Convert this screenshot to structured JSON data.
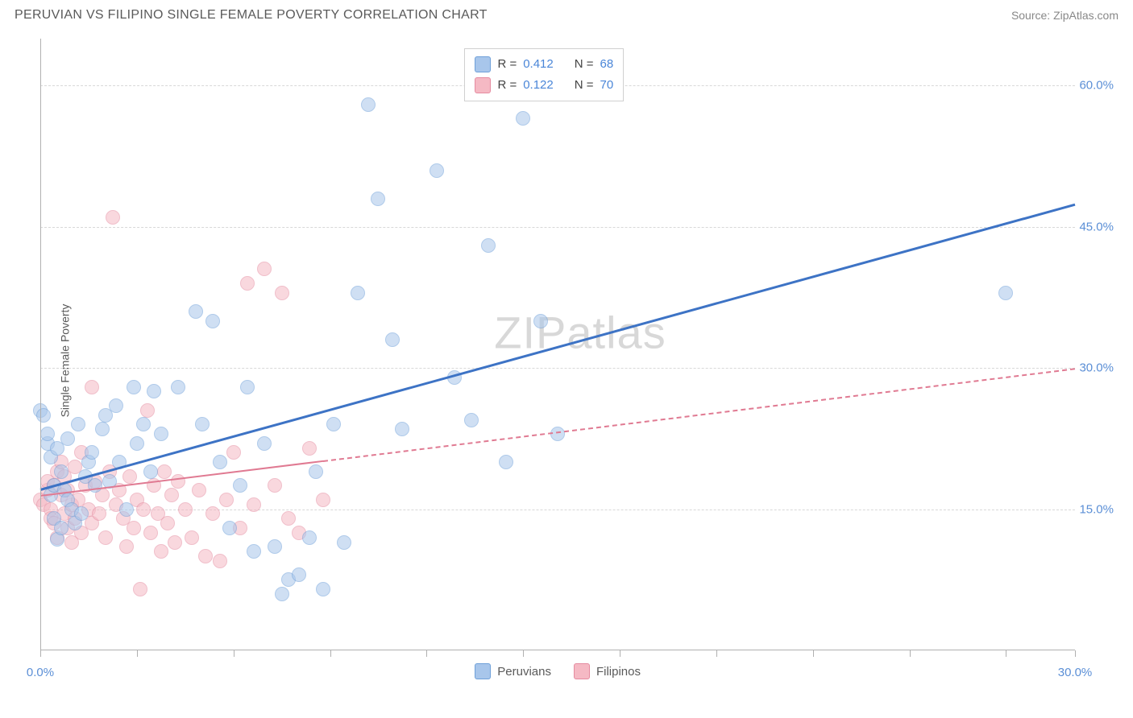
{
  "header": {
    "title": "PERUVIAN VS FILIPINO SINGLE FEMALE POVERTY CORRELATION CHART",
    "source": "Source: ZipAtlas.com"
  },
  "chart": {
    "type": "scatter",
    "ylabel": "Single Female Poverty",
    "watermark": "ZIPatlas",
    "background_color": "#ffffff",
    "grid_color": "#d8d8d8",
    "axis_color": "#b0b0b0",
    "tick_label_color": "#5b8fd6",
    "xlim": [
      0,
      30
    ],
    "ylim": [
      0,
      65
    ],
    "xtick_positions": [
      0,
      2.8,
      5.6,
      8.4,
      11.2,
      14,
      16.8,
      19.6,
      22.4,
      25.2,
      28,
      30
    ],
    "xtick_labels": {
      "0": "0.0%",
      "30": "30.0%"
    },
    "ytick_positions": [
      15,
      30,
      45,
      60
    ],
    "ytick_labels": {
      "15": "15.0%",
      "30": "30.0%",
      "45": "45.0%",
      "60": "60.0%"
    },
    "marker_radius": 9,
    "series": {
      "peruvians": {
        "label": "Peruvians",
        "fill_color": "#a8c6eb",
        "stroke_color": "#6fa0d9",
        "fill_opacity": 0.55,
        "regression": {
          "x0": 0,
          "y0": 17.2,
          "x1": 30,
          "y1": 47.5,
          "color": "#3d73c5",
          "width": 3,
          "dash_from_x": null
        },
        "points": [
          [
            0.0,
            25.5
          ],
          [
            0.1,
            25.0
          ],
          [
            0.2,
            22.0
          ],
          [
            0.2,
            23.0
          ],
          [
            0.3,
            20.5
          ],
          [
            0.3,
            16.5
          ],
          [
            0.4,
            17.5
          ],
          [
            0.4,
            14.0
          ],
          [
            0.5,
            21.5
          ],
          [
            0.5,
            11.8
          ],
          [
            0.6,
            19.0
          ],
          [
            0.6,
            13.0
          ],
          [
            0.7,
            17.0
          ],
          [
            0.8,
            16.0
          ],
          [
            0.8,
            22.5
          ],
          [
            0.9,
            15.0
          ],
          [
            1.0,
            13.5
          ],
          [
            1.1,
            24.0
          ],
          [
            1.2,
            14.5
          ],
          [
            1.3,
            18.5
          ],
          [
            1.4,
            20.0
          ],
          [
            1.5,
            21.0
          ],
          [
            1.6,
            17.5
          ],
          [
            1.8,
            23.5
          ],
          [
            1.9,
            25.0
          ],
          [
            2.0,
            18.0
          ],
          [
            2.2,
            26.0
          ],
          [
            2.3,
            20.0
          ],
          [
            2.5,
            15.0
          ],
          [
            2.7,
            28.0
          ],
          [
            2.8,
            22.0
          ],
          [
            3.0,
            24.0
          ],
          [
            3.2,
            19.0
          ],
          [
            3.3,
            27.5
          ],
          [
            3.5,
            23.0
          ],
          [
            4.0,
            28.0
          ],
          [
            4.5,
            36.0
          ],
          [
            4.7,
            24.0
          ],
          [
            5.0,
            35.0
          ],
          [
            5.2,
            20.0
          ],
          [
            5.5,
            13.0
          ],
          [
            5.8,
            17.5
          ],
          [
            6.0,
            28.0
          ],
          [
            6.2,
            10.5
          ],
          [
            6.5,
            22.0
          ],
          [
            6.8,
            11.0
          ],
          [
            7.0,
            6.0
          ],
          [
            7.2,
            7.5
          ],
          [
            7.5,
            8.0
          ],
          [
            7.8,
            12.0
          ],
          [
            8.0,
            19.0
          ],
          [
            8.2,
            6.5
          ],
          [
            8.5,
            24.0
          ],
          [
            8.8,
            11.5
          ],
          [
            9.2,
            38.0
          ],
          [
            9.5,
            58.0
          ],
          [
            9.8,
            48.0
          ],
          [
            10.2,
            33.0
          ],
          [
            10.5,
            23.5
          ],
          [
            11.5,
            51.0
          ],
          [
            12.0,
            29.0
          ],
          [
            12.5,
            24.5
          ],
          [
            13.0,
            43.0
          ],
          [
            13.5,
            20.0
          ],
          [
            14.0,
            56.5
          ],
          [
            14.5,
            35.0
          ],
          [
            15.0,
            23.0
          ],
          [
            28.0,
            38.0
          ]
        ]
      },
      "filipinos": {
        "label": "Filipinos",
        "fill_color": "#f5b9c4",
        "stroke_color": "#e58ba0",
        "fill_opacity": 0.55,
        "regression": {
          "x0": 0,
          "y0": 16.5,
          "x1": 30,
          "y1": 30.0,
          "color": "#e07a92",
          "width": 2,
          "dash_from_x": 8.2
        },
        "points": [
          [
            0.0,
            16.0
          ],
          [
            0.1,
            15.5
          ],
          [
            0.2,
            17.0
          ],
          [
            0.2,
            18.0
          ],
          [
            0.3,
            15.0
          ],
          [
            0.3,
            14.0
          ],
          [
            0.4,
            17.5
          ],
          [
            0.4,
            13.5
          ],
          [
            0.5,
            19.0
          ],
          [
            0.5,
            12.0
          ],
          [
            0.6,
            16.5
          ],
          [
            0.6,
            20.0
          ],
          [
            0.7,
            14.5
          ],
          [
            0.7,
            18.5
          ],
          [
            0.8,
            13.0
          ],
          [
            0.8,
            17.0
          ],
          [
            0.9,
            15.5
          ],
          [
            0.9,
            11.5
          ],
          [
            1.0,
            19.5
          ],
          [
            1.0,
            14.0
          ],
          [
            1.1,
            16.0
          ],
          [
            1.2,
            21.0
          ],
          [
            1.2,
            12.5
          ],
          [
            1.3,
            17.5
          ],
          [
            1.4,
            15.0
          ],
          [
            1.5,
            13.5
          ],
          [
            1.5,
            28.0
          ],
          [
            1.6,
            18.0
          ],
          [
            1.7,
            14.5
          ],
          [
            1.8,
            16.5
          ],
          [
            1.9,
            12.0
          ],
          [
            2.0,
            19.0
          ],
          [
            2.1,
            46.0
          ],
          [
            2.2,
            15.5
          ],
          [
            2.3,
            17.0
          ],
          [
            2.4,
            14.0
          ],
          [
            2.5,
            11.0
          ],
          [
            2.6,
            18.5
          ],
          [
            2.7,
            13.0
          ],
          [
            2.8,
            16.0
          ],
          [
            2.9,
            6.5
          ],
          [
            3.0,
            15.0
          ],
          [
            3.1,
            25.5
          ],
          [
            3.2,
            12.5
          ],
          [
            3.3,
            17.5
          ],
          [
            3.4,
            14.5
          ],
          [
            3.5,
            10.5
          ],
          [
            3.6,
            19.0
          ],
          [
            3.7,
            13.5
          ],
          [
            3.8,
            16.5
          ],
          [
            3.9,
            11.5
          ],
          [
            4.0,
            18.0
          ],
          [
            4.2,
            15.0
          ],
          [
            4.4,
            12.0
          ],
          [
            4.6,
            17.0
          ],
          [
            4.8,
            10.0
          ],
          [
            5.0,
            14.5
          ],
          [
            5.2,
            9.5
          ],
          [
            5.4,
            16.0
          ],
          [
            5.6,
            21.0
          ],
          [
            5.8,
            13.0
          ],
          [
            6.0,
            39.0
          ],
          [
            6.2,
            15.5
          ],
          [
            6.5,
            40.5
          ],
          [
            6.8,
            17.5
          ],
          [
            7.0,
            38.0
          ],
          [
            7.2,
            14.0
          ],
          [
            7.5,
            12.5
          ],
          [
            7.8,
            21.5
          ],
          [
            8.2,
            16.0
          ]
        ]
      }
    },
    "stats_box": {
      "rows": [
        {
          "swatch_fill": "#a8c6eb",
          "swatch_stroke": "#6fa0d9",
          "r_label": "R =",
          "r_val": "0.412",
          "n_label": "N =",
          "n_val": "68"
        },
        {
          "swatch_fill": "#f5b9c4",
          "swatch_stroke": "#e58ba0",
          "r_label": "R =",
          "r_val": "0.122",
          "n_label": "N =",
          "n_val": "70"
        }
      ]
    }
  }
}
